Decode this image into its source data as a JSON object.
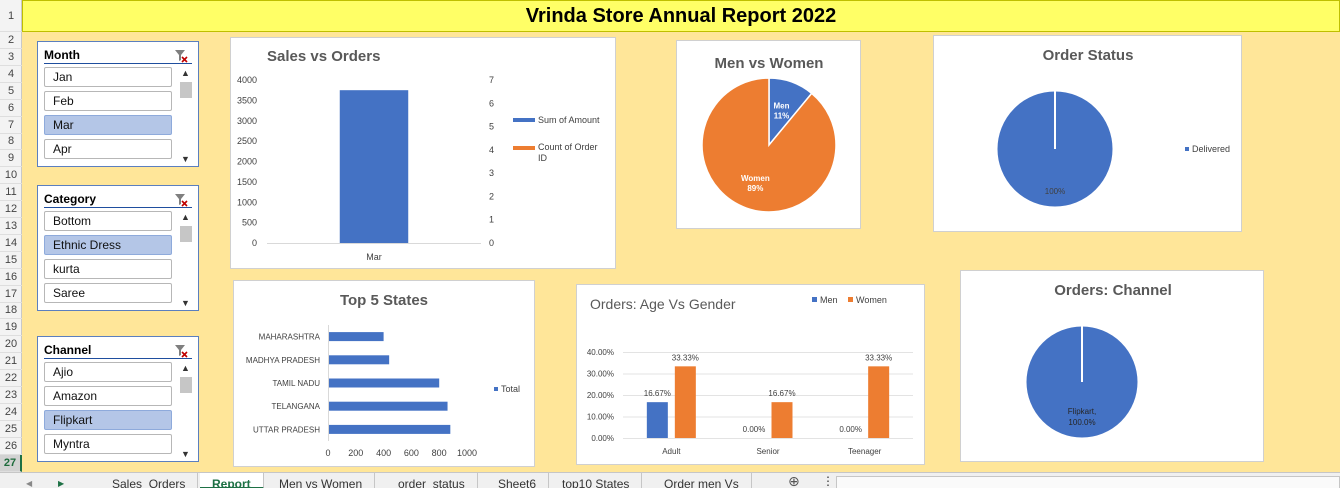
{
  "report": {
    "title": "Vrinda Store Annual Report 2022"
  },
  "rows": [
    "1",
    "2",
    "3",
    "4",
    "5",
    "6",
    "7",
    "8",
    "9",
    "10",
    "11",
    "12",
    "13",
    "14",
    "15",
    "16",
    "17",
    "18",
    "19",
    "20",
    "21",
    "22",
    "23",
    "24",
    "25",
    "26",
    "27"
  ],
  "slicers": {
    "month": {
      "label": "Month",
      "items": [
        {
          "label": "Jan",
          "selected": false
        },
        {
          "label": "Feb",
          "selected": false
        },
        {
          "label": "Mar",
          "selected": true
        },
        {
          "label": "Apr",
          "selected": false
        }
      ]
    },
    "category": {
      "label": "Category",
      "items": [
        {
          "label": "Bottom",
          "selected": false
        },
        {
          "label": "Ethnic Dress",
          "selected": true
        },
        {
          "label": "kurta",
          "selected": false
        },
        {
          "label": "Saree",
          "selected": false
        }
      ]
    },
    "channel": {
      "label": "Channel",
      "items": [
        {
          "label": "Ajio",
          "selected": false
        },
        {
          "label": "Amazon",
          "selected": false
        },
        {
          "label": "Flipkart",
          "selected": true
        },
        {
          "label": "Myntra",
          "selected": false
        }
      ]
    }
  },
  "tabs": [
    "Sales_Orders",
    "Report",
    "Men vs Women",
    "order_status",
    "Sheet6",
    "top10 States",
    "Order men Vs"
  ],
  "active_tab": "Report",
  "colors": {
    "blue": "#4472c4",
    "orange": "#ed7d31"
  },
  "chart_data": [
    {
      "id": "sales-vs-orders",
      "type": "bar",
      "title": "Sales vs Orders",
      "categories": [
        "Mar"
      ],
      "series": [
        {
          "name": "Sum of Amount",
          "values": [
            3750
          ],
          "axis": "left"
        },
        {
          "name": "Count of Order ID",
          "values": [
            null
          ],
          "axis": "right"
        }
      ],
      "ylim": [
        0,
        4000
      ],
      "yticks": [
        "0",
        "500",
        "1000",
        "1500",
        "2000",
        "2500",
        "3000",
        "3500",
        "4000"
      ],
      "y2lim": [
        0,
        7
      ],
      "y2ticks": [
        "0",
        "1",
        "2",
        "3",
        "4",
        "5",
        "6",
        "7"
      ],
      "legend": "right"
    },
    {
      "id": "men-vs-women",
      "type": "pie",
      "title": "Men vs Women",
      "labels": [
        "Men",
        "Women"
      ],
      "values": [
        11,
        89
      ],
      "pct_labels": [
        "11%",
        "89%"
      ]
    },
    {
      "id": "order-status",
      "type": "pie",
      "title": "Order Status",
      "labels": [
        "Delivered"
      ],
      "values": [
        100
      ],
      "pct_labels": [
        "100%"
      ],
      "legend": "right"
    },
    {
      "id": "top5-states",
      "type": "bar",
      "orientation": "horizontal",
      "title": "Top 5 States",
      "categories": [
        "MAHARASHTRA",
        "MADHYA PRADESH",
        "TAMIL NADU",
        "TELANGANA",
        "UTTAR PRADESH"
      ],
      "series": [
        {
          "name": "Total",
          "values": [
            400,
            440,
            800,
            860,
            880
          ]
        }
      ],
      "xlim": [
        0,
        1000
      ],
      "xticks": [
        "0",
        "200",
        "400",
        "600",
        "800",
        "1000"
      ],
      "legend": "right"
    },
    {
      "id": "age-vs-gender",
      "type": "bar",
      "title": "Orders: Age Vs Gender",
      "categories": [
        "Adult",
        "Senior",
        "Teenager"
      ],
      "series": [
        {
          "name": "Men",
          "values": [
            16.67,
            0.0,
            0.0
          ],
          "labels": [
            "16.67%",
            "0.00%",
            "0.00%"
          ]
        },
        {
          "name": "Women",
          "values": [
            33.33,
            16.67,
            33.33
          ],
          "labels": [
            "33.33%",
            "16.67%",
            "33.33%"
          ]
        }
      ],
      "ylim": [
        0,
        40
      ],
      "yticks": [
        "0.00%",
        "10.00%",
        "20.00%",
        "30.00%",
        "40.00%"
      ],
      "legend": "top-right"
    },
    {
      "id": "orders-channel",
      "type": "pie",
      "title": "Orders: Channel",
      "labels": [
        "Flipkart"
      ],
      "values": [
        100
      ],
      "point_labels": [
        "Flipkart,",
        "100.0%"
      ]
    }
  ]
}
